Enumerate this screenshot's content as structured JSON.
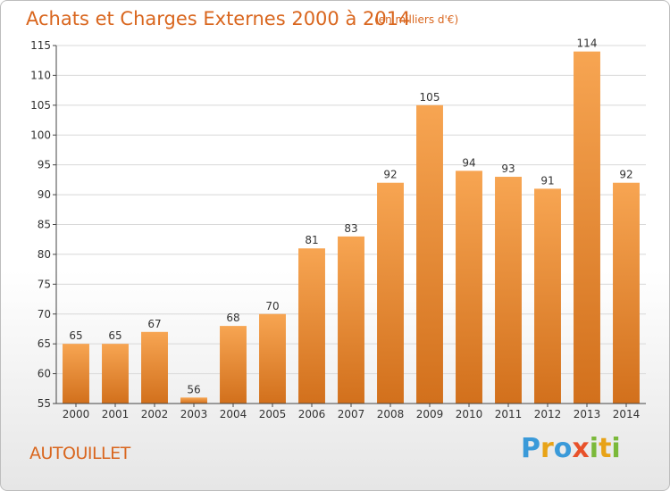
{
  "title": "Achats et Charges Externes 2000 à 2014",
  "unit_note": "(en milliers d'€)",
  "commune": "AUTOUILLET",
  "logo": {
    "text": "Proxiti",
    "letters": [
      {
        "ch": "P",
        "color": "#3a9ad9"
      },
      {
        "ch": "r",
        "color": "#e8a317"
      },
      {
        "ch": "o",
        "color": "#3a9ad9"
      },
      {
        "ch": "x",
        "color": "#e8512a"
      },
      {
        "ch": "i",
        "color": "#7bb93a"
      },
      {
        "ch": "t",
        "color": "#e8a317"
      },
      {
        "ch": "i",
        "color": "#7bb93a"
      }
    ]
  },
  "colors": {
    "bar_top": "#f7a552",
    "bar_bottom": "#d2701c",
    "text": "#d9661e",
    "axis": "#444444",
    "grid": "#d8d8d8"
  },
  "chart_data": {
    "type": "bar",
    "categories": [
      "2000",
      "2001",
      "2002",
      "2003",
      "2004",
      "2005",
      "2006",
      "2007",
      "2008",
      "2009",
      "2010",
      "2011",
      "2012",
      "2013",
      "2014"
    ],
    "values": [
      65,
      65,
      67,
      56,
      68,
      70,
      81,
      83,
      92,
      105,
      94,
      93,
      91,
      114,
      92
    ],
    "ylim": [
      55,
      115
    ],
    "yticks": [
      55,
      60,
      65,
      70,
      75,
      80,
      85,
      90,
      95,
      100,
      105,
      110,
      115
    ],
    "grid": true,
    "legend": "none"
  }
}
